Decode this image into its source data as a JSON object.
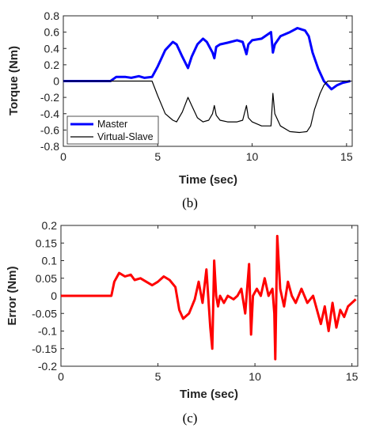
{
  "chart_data": [
    {
      "type": "line",
      "caption": "(b)",
      "xlabel": "Time (sec)",
      "ylabel": "Torque (Nm)",
      "xlim": [
        0,
        15.3
      ],
      "ylim": [
        -0.8,
        0.8
      ],
      "xticks": [
        0,
        5,
        10,
        15
      ],
      "yticks": [
        -0.8,
        -0.6,
        -0.4,
        -0.2,
        0,
        0.2,
        0.4,
        0.6,
        0.8
      ],
      "xtick_labels": [
        "0",
        "5",
        "10",
        "15"
      ],
      "ytick_labels": [
        "-0.8",
        "-0.6",
        "-0.4",
        "-0.2",
        "0",
        "0.2",
        "0.4",
        "0.6",
        "0.8"
      ],
      "grid": false,
      "legend_position": "bottom-left",
      "series": [
        {
          "name": "Master",
          "color": "#0000ff",
          "x": [
            0,
            2.5,
            2.8,
            3.3,
            3.6,
            4.0,
            4.3,
            4.7,
            5.0,
            5.4,
            5.8,
            6.0,
            6.3,
            6.6,
            6.8,
            7.1,
            7.4,
            7.6,
            7.9,
            8.0,
            8.1,
            8.3,
            8.7,
            9.2,
            9.5,
            9.7,
            9.8,
            10.0,
            10.5,
            11.0,
            11.1,
            11.2,
            11.5,
            12.0,
            12.4,
            12.8,
            13.0,
            13.2,
            13.5,
            13.8,
            14.0,
            14.2,
            14.5,
            14.8,
            15.2
          ],
          "y": [
            0,
            0,
            0.05,
            0.05,
            0.04,
            0.06,
            0.04,
            0.05,
            0.18,
            0.38,
            0.48,
            0.45,
            0.3,
            0.16,
            0.3,
            0.45,
            0.52,
            0.48,
            0.35,
            0.28,
            0.42,
            0.45,
            0.47,
            0.5,
            0.48,
            0.33,
            0.45,
            0.5,
            0.52,
            0.6,
            0.35,
            0.45,
            0.55,
            0.6,
            0.65,
            0.62,
            0.55,
            0.35,
            0.15,
            0.0,
            -0.05,
            -0.1,
            -0.05,
            -0.02,
            0.0
          ]
        },
        {
          "name": "Virtual-Slave",
          "color": "#000000",
          "x": [
            0,
            4.7,
            5.0,
            5.4,
            5.8,
            6.0,
            6.3,
            6.6,
            6.8,
            7.1,
            7.4,
            7.7,
            7.9,
            8.0,
            8.1,
            8.3,
            8.7,
            9.2,
            9.5,
            9.7,
            9.8,
            10.0,
            10.5,
            11.0,
            11.1,
            11.2,
            11.5,
            12.0,
            12.5,
            12.9,
            13.1,
            13.3,
            13.6,
            13.8,
            14.0,
            14.5,
            15.2
          ],
          "y": [
            0,
            0,
            -0.18,
            -0.4,
            -0.48,
            -0.5,
            -0.38,
            -0.2,
            -0.3,
            -0.45,
            -0.5,
            -0.48,
            -0.4,
            -0.3,
            -0.42,
            -0.48,
            -0.5,
            -0.5,
            -0.48,
            -0.3,
            -0.45,
            -0.5,
            -0.55,
            -0.55,
            -0.15,
            -0.4,
            -0.55,
            -0.62,
            -0.63,
            -0.62,
            -0.55,
            -0.35,
            -0.15,
            -0.05,
            0.0,
            0.0,
            0.0
          ]
        }
      ]
    },
    {
      "type": "line",
      "caption": "(c)",
      "xlabel": "Time (sec)",
      "ylabel": "Error (Nm)",
      "xlim": [
        0,
        15.3
      ],
      "ylim": [
        -0.2,
        0.2
      ],
      "xticks": [
        0,
        5,
        10,
        15
      ],
      "yticks": [
        -0.2,
        -0.15,
        -0.1,
        -0.05,
        0,
        0.05,
        0.1,
        0.15,
        0.2
      ],
      "xtick_labels": [
        "0",
        "5",
        "10",
        "15"
      ],
      "ytick_labels": [
        "-0.2",
        "-0.15",
        "-0.1",
        "-0.05",
        "0",
        "0.05",
        "0.1",
        "0.15",
        "0.2"
      ],
      "grid": false,
      "series": [
        {
          "color": "#ff0000",
          "x": [
            0,
            2.6,
            2.75,
            3.0,
            3.3,
            3.6,
            3.8,
            4.1,
            4.4,
            4.7,
            5.0,
            5.3,
            5.6,
            5.9,
            6.1,
            6.3,
            6.6,
            6.9,
            7.1,
            7.3,
            7.5,
            7.7,
            7.8,
            7.9,
            8.0,
            8.1,
            8.2,
            8.4,
            8.6,
            8.9,
            9.1,
            9.3,
            9.5,
            9.7,
            9.8,
            9.9,
            10.1,
            10.3,
            10.5,
            10.7,
            10.9,
            11.0,
            11.05,
            11.15,
            11.3,
            11.5,
            11.7,
            11.9,
            12.1,
            12.4,
            12.7,
            13.0,
            13.2,
            13.4,
            13.6,
            13.8,
            14.0,
            14.2,
            14.4,
            14.6,
            14.8,
            15.0,
            15.2
          ],
          "y": [
            0,
            0,
            0.04,
            0.065,
            0.055,
            0.06,
            0.045,
            0.05,
            0.04,
            0.03,
            0.04,
            0.055,
            0.045,
            0.025,
            -0.04,
            -0.065,
            -0.05,
            -0.01,
            0.04,
            -0.02,
            0.075,
            -0.09,
            -0.15,
            0.1,
            0.0,
            -0.03,
            0.0,
            -0.02,
            0.0,
            -0.01,
            0.0,
            0.02,
            -0.05,
            0.09,
            -0.11,
            0.0,
            0.02,
            0.0,
            0.05,
            0.0,
            0.02,
            -0.05,
            -0.18,
            0.17,
            0.02,
            -0.03,
            0.04,
            0.0,
            -0.02,
            0.02,
            -0.02,
            0.0,
            -0.04,
            -0.08,
            -0.03,
            -0.1,
            -0.02,
            -0.09,
            -0.04,
            -0.06,
            -0.03,
            -0.02,
            -0.01
          ]
        }
      ]
    }
  ]
}
